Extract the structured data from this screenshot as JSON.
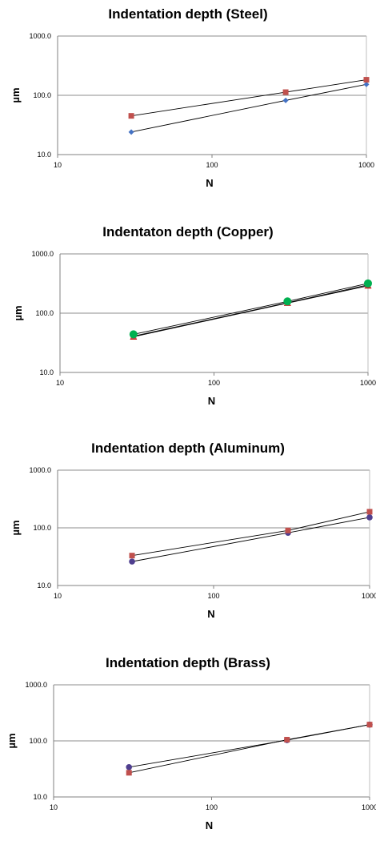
{
  "chart_data": [
    {
      "type": "scatter",
      "title": "Indentation depth (Steel)",
      "xlabel": "N",
      "ylabel": "µm",
      "xscale": "log",
      "yscale": "log",
      "xlim": [
        10,
        1000
      ],
      "ylim": [
        10,
        1000
      ],
      "xticks": [
        "10",
        "100",
        "1000"
      ],
      "yticks": [
        "10.0",
        "100.0",
        "1000.0"
      ],
      "grid": "horizontal",
      "legend": "none",
      "series": [
        {
          "marker": "diamond",
          "color": "#4472C4",
          "x": [
            30,
            300,
            1000
          ],
          "y": [
            24,
            82,
            153
          ]
        },
        {
          "marker": "square",
          "color": "#C0504D",
          "x": [
            30,
            300,
            1000
          ],
          "y": [
            45,
            113,
            183
          ]
        }
      ]
    },
    {
      "type": "scatter",
      "title": "Indentaton depth (Copper)",
      "xlabel": "N",
      "ylabel": "µm",
      "xscale": "log",
      "yscale": "log",
      "xlim": [
        10,
        1000
      ],
      "ylim": [
        10,
        1000
      ],
      "xticks": [
        "10",
        "100",
        "1000"
      ],
      "yticks": [
        "10.0",
        "100.0",
        "1000.0"
      ],
      "grid": "horizontal",
      "legend": "none",
      "series": [
        {
          "marker": "triangle",
          "color": "#C00000",
          "x": [
            30,
            300,
            1000
          ],
          "y": [
            40,
            148,
            290
          ]
        },
        {
          "marker": "square",
          "color": "#C0504D",
          "x": [
            30,
            300,
            1000
          ],
          "y": [
            41,
            150,
            300
          ]
        },
        {
          "marker": "circle",
          "color": "#00B050",
          "x": [
            30,
            300,
            1000
          ],
          "y": [
            44,
            158,
            318
          ]
        }
      ]
    },
    {
      "type": "scatter",
      "title": "Indentation depth (Aluminum)",
      "xlabel": "N",
      "ylabel": "µm",
      "xscale": "log",
      "yscale": "log",
      "xlim": [
        10,
        1000
      ],
      "ylim": [
        10,
        1000
      ],
      "xticks": [
        "10",
        "100",
        "1000"
      ],
      "yticks": [
        "10.0",
        "100.0",
        "1000.0"
      ],
      "grid": "horizontal",
      "legend": "none",
      "series": [
        {
          "marker": "circle",
          "color": "#4F3F8F",
          "x": [
            30,
            300,
            1000
          ],
          "y": [
            26,
            82,
            152
          ]
        },
        {
          "marker": "square",
          "color": "#C0504D",
          "x": [
            30,
            300,
            1000
          ],
          "y": [
            33,
            90,
            190
          ]
        }
      ]
    },
    {
      "type": "scatter",
      "title": "Indentation depth (Brass)",
      "xlabel": "N",
      "ylabel": "µm",
      "xscale": "log",
      "yscale": "log",
      "xlim": [
        10,
        1000
      ],
      "ylim": [
        10,
        1000
      ],
      "xticks": [
        "10",
        "100",
        "1000"
      ],
      "yticks": [
        "10.0",
        "100.0",
        "1000.0"
      ],
      "grid": "horizontal",
      "legend": "none",
      "series": [
        {
          "marker": "circle",
          "color": "#4F3F8F",
          "x": [
            30,
            300,
            1000
          ],
          "y": [
            34,
            103,
            195
          ]
        },
        {
          "marker": "square",
          "color": "#C0504D",
          "x": [
            30,
            300,
            1000
          ],
          "y": [
            27,
            105,
            195
          ]
        }
      ]
    }
  ]
}
